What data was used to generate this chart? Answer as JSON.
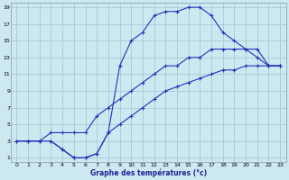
{
  "xlabel": "Graphe des températures (°c)",
  "bg_color": "#cce8f0",
  "grid_color": "#a0c4d4",
  "line_color": "#2233bb",
  "xlim": [
    -0.5,
    23.5
  ],
  "ylim": [
    0.5,
    19.5
  ],
  "xticks": [
    0,
    1,
    2,
    3,
    4,
    5,
    6,
    7,
    8,
    9,
    10,
    11,
    12,
    13,
    14,
    15,
    16,
    17,
    18,
    19,
    20,
    21,
    22,
    23
  ],
  "yticks": [
    1,
    3,
    5,
    7,
    9,
    11,
    13,
    15,
    17,
    19
  ],
  "line1_x": [
    0,
    1,
    2,
    3,
    4,
    5,
    6,
    7,
    8,
    9,
    10,
    11,
    12,
    13,
    14,
    15,
    16,
    17,
    18,
    19,
    20,
    21,
    22,
    23
  ],
  "line1_y": [
    3,
    3,
    3,
    3,
    2,
    1,
    1,
    1.5,
    4,
    12,
    15,
    16,
    18,
    18.5,
    18.5,
    19,
    19,
    18,
    16,
    15,
    14,
    13,
    12,
    12
  ],
  "line2_x": [
    3,
    4,
    5,
    6,
    7,
    8,
    9,
    10,
    11,
    12,
    13,
    14,
    15,
    16,
    17,
    18,
    19,
    20,
    21,
    22,
    23
  ],
  "line2_y": [
    3,
    2,
    1,
    1,
    1.5,
    4,
    5,
    6,
    7,
    8,
    9,
    9.5,
    10,
    10.5,
    11,
    11.5,
    11.5,
    12,
    12,
    12,
    12
  ],
  "line3_x": [
    0,
    1,
    2,
    3,
    4,
    5,
    6,
    7,
    8,
    9,
    10,
    11,
    12,
    13,
    14,
    15,
    16,
    17,
    18,
    19,
    20,
    21,
    22,
    23
  ],
  "line3_y": [
    3,
    3,
    3,
    4,
    4,
    4,
    4,
    6,
    7,
    8,
    9,
    10,
    11,
    12,
    12,
    13,
    13,
    14,
    14,
    14,
    14,
    14,
    12,
    12
  ]
}
